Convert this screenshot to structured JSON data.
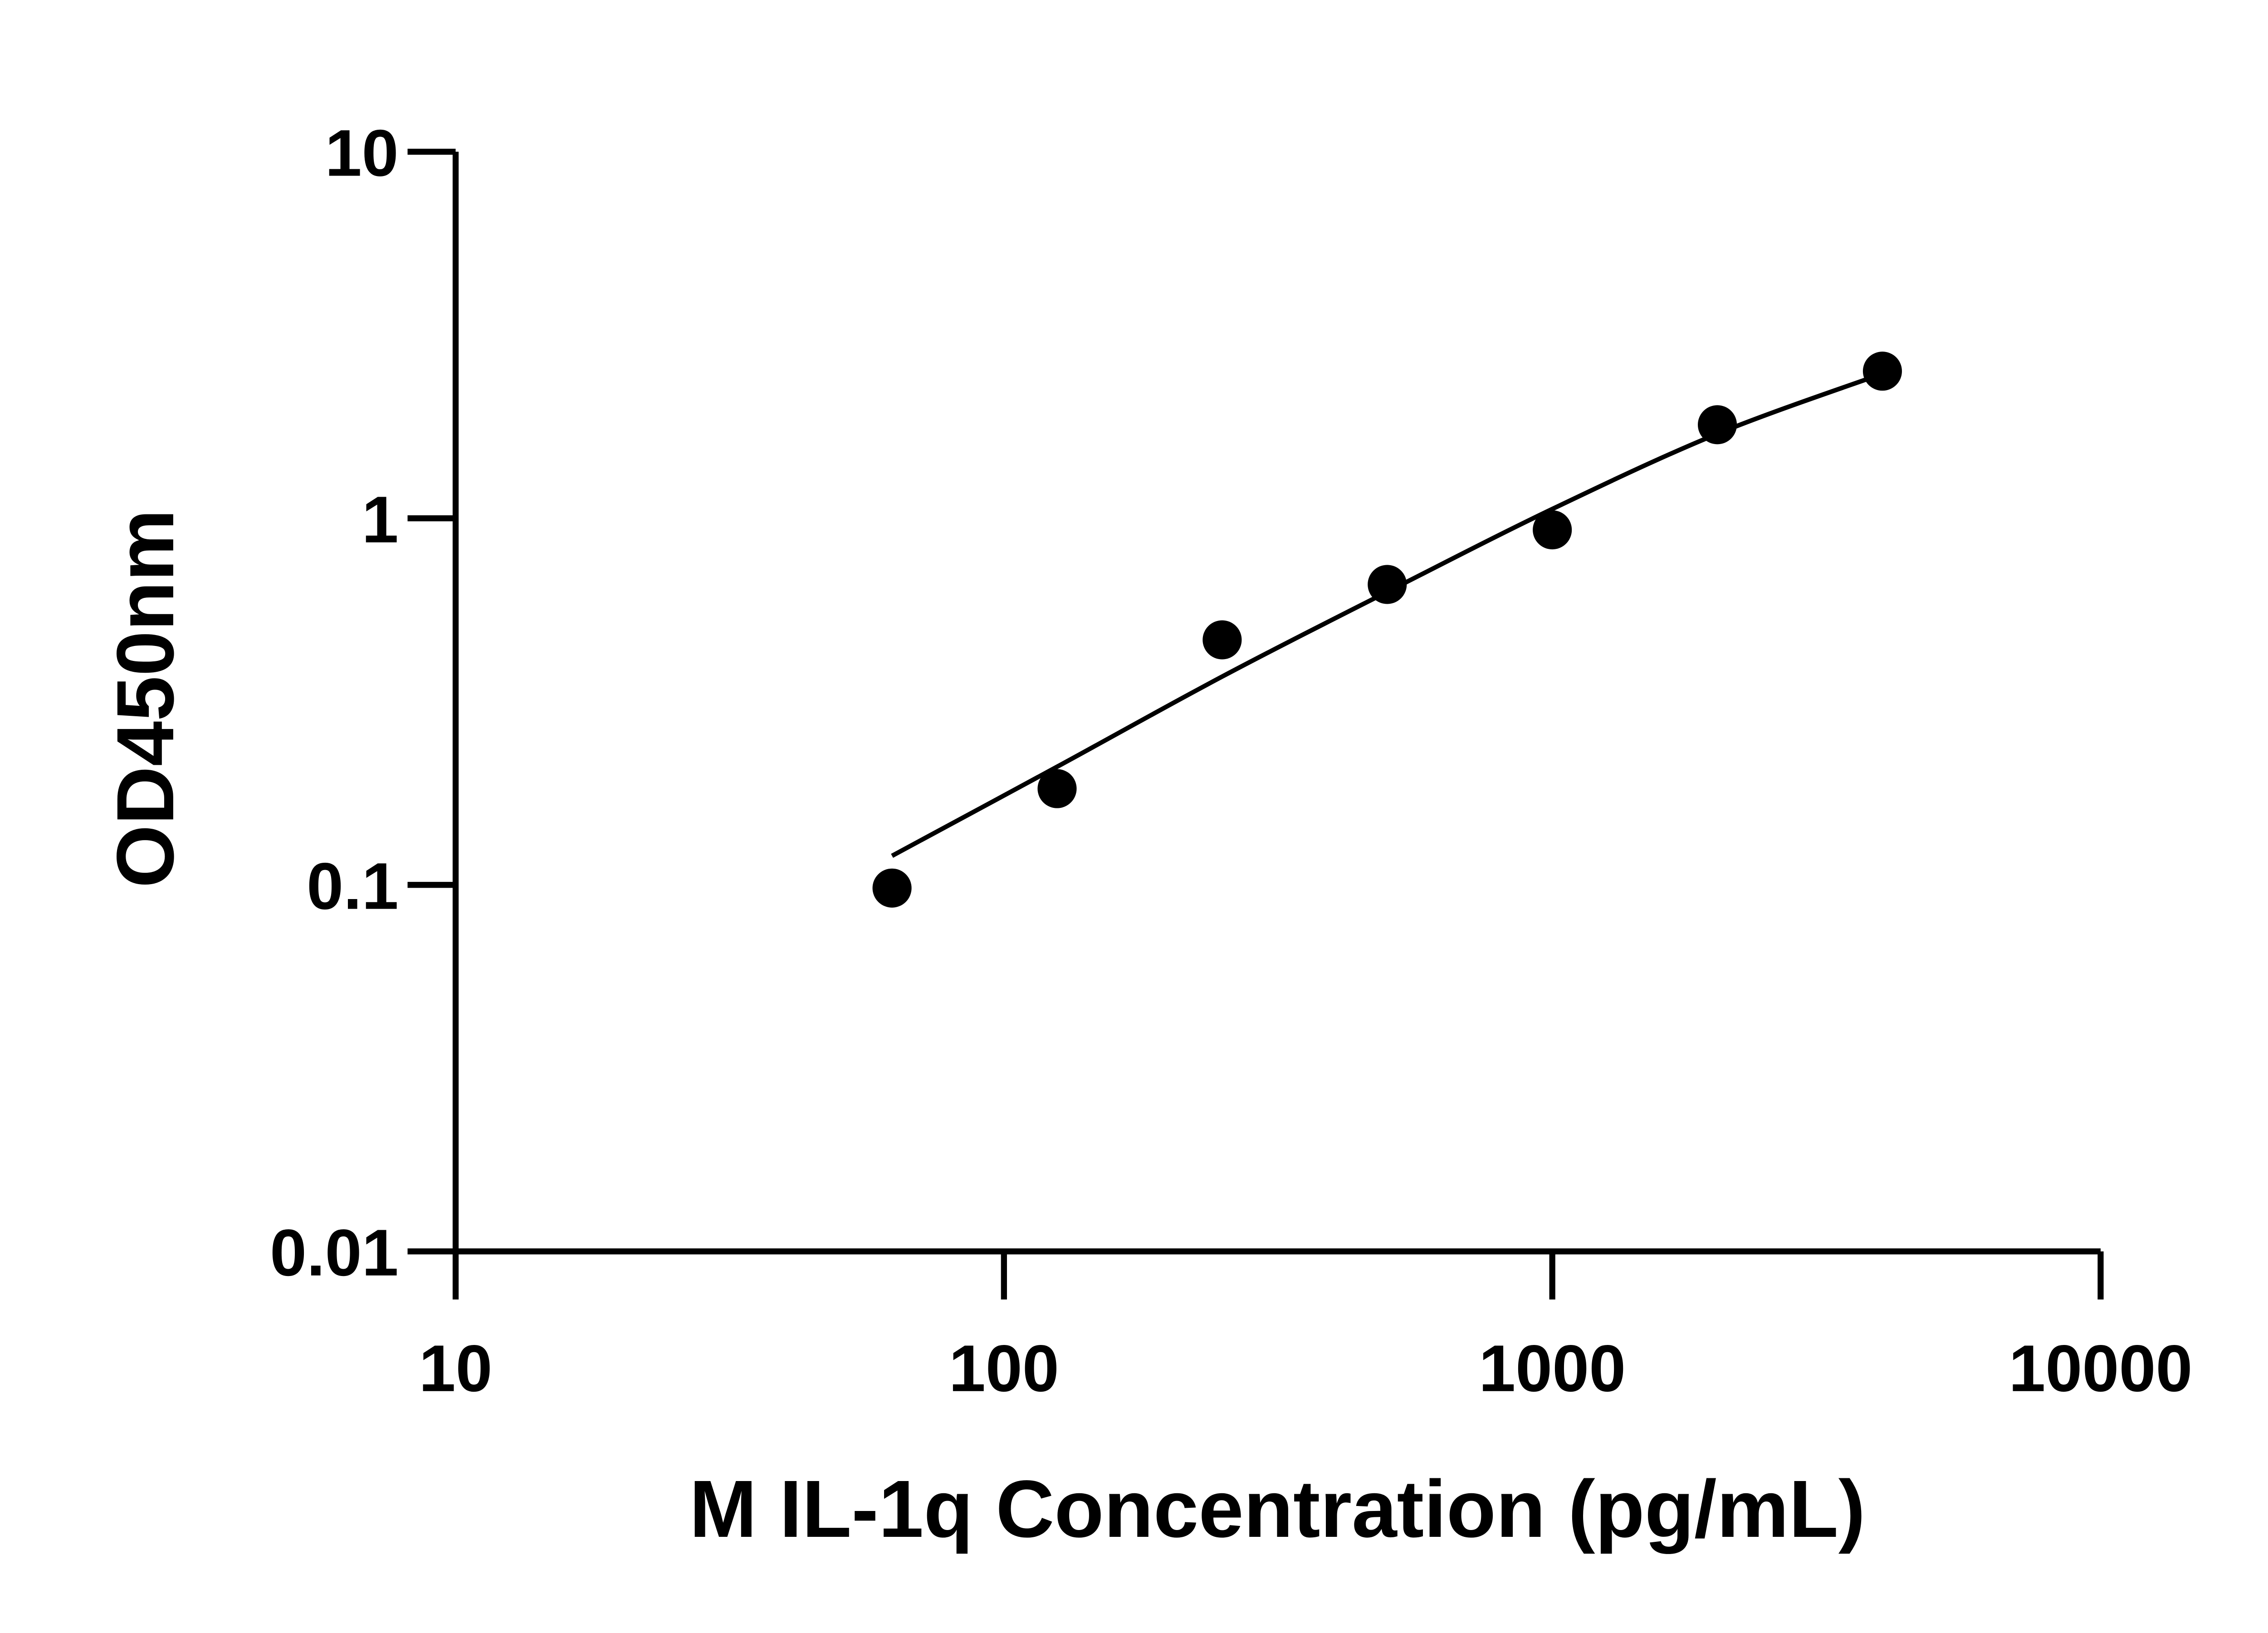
{
  "chart_data": {
    "type": "scatter",
    "xlabel": "M IL-1q Concentration (pg/mL)",
    "ylabel": "OD450nm",
    "x_scale": "log",
    "y_scale": "log",
    "xlim": [
      10,
      10000
    ],
    "ylim": [
      0.01,
      10
    ],
    "x_ticks": [
      "10",
      "100",
      "1000",
      "10000"
    ],
    "y_ticks": [
      "0.01",
      "0.1",
      "1",
      "10"
    ],
    "grid": false,
    "legend": "none",
    "color": "#000000",
    "points": {
      "x": [
        62.5,
        125,
        250,
        500,
        1000,
        2000,
        4000
      ],
      "y": [
        0.098,
        0.183,
        0.466,
        0.66,
        0.93,
        1.8,
        2.52
      ]
    },
    "fit_curve": {
      "x": [
        62.5,
        125,
        250,
        500,
        1000,
        2000,
        4000
      ],
      "y": [
        0.12,
        0.21,
        0.37,
        0.63,
        1.06,
        1.7,
        2.48
      ]
    }
  }
}
